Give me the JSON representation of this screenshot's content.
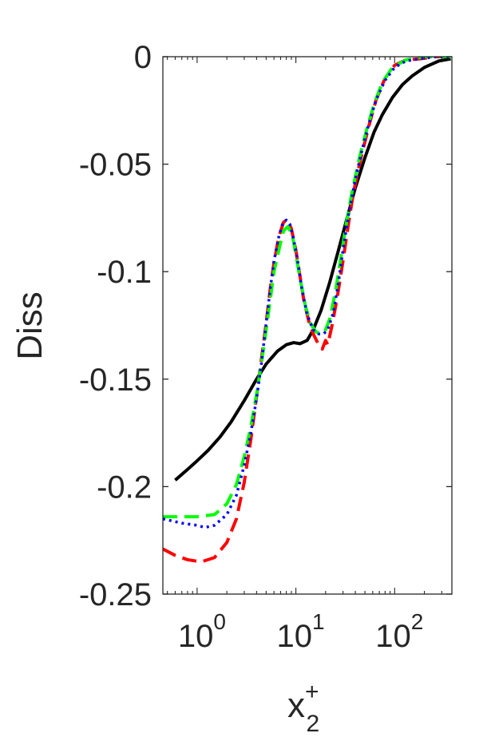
{
  "chart_data": {
    "type": "line",
    "title": "",
    "xlabel": "x",
    "xlabel_superscript": "+",
    "xlabel_subscript": "2",
    "ylabel": "Diss",
    "xscale": "log",
    "xlim": [
      0.45,
      380
    ],
    "ylim": [
      -0.25,
      0
    ],
    "grid": false,
    "x_ticks": [
      {
        "value": 1,
        "base": "10",
        "exp": "0"
      },
      {
        "value": 10,
        "base": "10",
        "exp": "1"
      },
      {
        "value": 100,
        "base": "10",
        "exp": "2"
      }
    ],
    "y_ticks": [
      {
        "value": 0,
        "label": "0"
      },
      {
        "value": -0.05,
        "label": "-0.05"
      },
      {
        "value": -0.1,
        "label": "-0.1"
      },
      {
        "value": -0.15,
        "label": "-0.15"
      },
      {
        "value": -0.2,
        "label": "-0.2"
      },
      {
        "value": -0.25,
        "label": "-0.25"
      }
    ],
    "series": [
      {
        "color": "#000000",
        "dash": "solid",
        "points": [
          [
            0.6,
            -0.197
          ],
          [
            0.8,
            -0.192
          ],
          [
            1.0,
            -0.188
          ],
          [
            1.3,
            -0.183
          ],
          [
            1.7,
            -0.177
          ],
          [
            2.2,
            -0.17
          ],
          [
            3.0,
            -0.16
          ],
          [
            4.0,
            -0.15
          ],
          [
            5.0,
            -0.143
          ],
          [
            6.5,
            -0.137
          ],
          [
            8.0,
            -0.134
          ],
          [
            9.5,
            -0.133
          ],
          [
            11,
            -0.1335
          ],
          [
            13,
            -0.132
          ],
          [
            15,
            -0.127
          ],
          [
            18,
            -0.118
          ],
          [
            22,
            -0.105
          ],
          [
            27,
            -0.09
          ],
          [
            33,
            -0.075
          ],
          [
            40,
            -0.061
          ],
          [
            50,
            -0.047
          ],
          [
            62,
            -0.035
          ],
          [
            75,
            -0.027
          ],
          [
            95,
            -0.019
          ],
          [
            120,
            -0.013
          ],
          [
            150,
            -0.009
          ],
          [
            200,
            -0.005
          ],
          [
            280,
            -0.002
          ],
          [
            370,
            -0.001
          ]
        ]
      },
      {
        "color": "#ff0000",
        "dash": "dashed",
        "points": [
          [
            0.45,
            -0.229
          ],
          [
            0.6,
            -0.232
          ],
          [
            0.8,
            -0.234
          ],
          [
            1.1,
            -0.235
          ],
          [
            1.5,
            -0.233
          ],
          [
            2.0,
            -0.226
          ],
          [
            2.5,
            -0.215
          ],
          [
            3.0,
            -0.198
          ],
          [
            3.5,
            -0.178
          ],
          [
            4.0,
            -0.158
          ],
          [
            4.5,
            -0.14
          ],
          [
            5.0,
            -0.124
          ],
          [
            5.5,
            -0.108
          ],
          [
            6.0,
            -0.096
          ],
          [
            6.7,
            -0.084
          ],
          [
            7.5,
            -0.077
          ],
          [
            8.2,
            -0.076
          ],
          [
            9.0,
            -0.08
          ],
          [
            10,
            -0.09
          ],
          [
            11,
            -0.102
          ],
          [
            12,
            -0.113
          ],
          [
            13.5,
            -0.123
          ],
          [
            15,
            -0.129
          ],
          [
            17,
            -0.134
          ],
          [
            18.5,
            -0.136
          ],
          [
            20,
            -0.132
          ],
          [
            21,
            -0.134
          ],
          [
            23,
            -0.126
          ],
          [
            26,
            -0.113
          ],
          [
            30,
            -0.095
          ],
          [
            34,
            -0.078
          ],
          [
            38,
            -0.064
          ],
          [
            45,
            -0.048
          ],
          [
            55,
            -0.032
          ],
          [
            65,
            -0.02
          ],
          [
            80,
            -0.01
          ],
          [
            100,
            -0.004
          ],
          [
            130,
            -0.0015
          ],
          [
            180,
            -0.001
          ],
          [
            260,
            0.0
          ],
          [
            370,
            0.0
          ]
        ]
      },
      {
        "color": "#00ff00",
        "dash": "dashed",
        "points": [
          [
            0.45,
            -0.214
          ],
          [
            0.7,
            -0.214
          ],
          [
            1.0,
            -0.214
          ],
          [
            1.5,
            -0.213
          ],
          [
            2.0,
            -0.208
          ],
          [
            2.5,
            -0.199
          ],
          [
            3.0,
            -0.186
          ],
          [
            3.5,
            -0.172
          ],
          [
            4.0,
            -0.157
          ],
          [
            4.5,
            -0.142
          ],
          [
            5.0,
            -0.127
          ],
          [
            5.5,
            -0.113
          ],
          [
            6.0,
            -0.1
          ],
          [
            6.8,
            -0.089
          ],
          [
            7.5,
            -0.081
          ],
          [
            8.3,
            -0.079
          ],
          [
            9.2,
            -0.083
          ],
          [
            10,
            -0.092
          ],
          [
            11,
            -0.103
          ],
          [
            12.5,
            -0.116
          ],
          [
            14,
            -0.124
          ],
          [
            16,
            -0.128
          ],
          [
            18,
            -0.129
          ],
          [
            20,
            -0.127
          ],
          [
            22,
            -0.122
          ],
          [
            25,
            -0.11
          ],
          [
            28,
            -0.096
          ],
          [
            32,
            -0.079
          ],
          [
            37,
            -0.063
          ],
          [
            44,
            -0.047
          ],
          [
            52,
            -0.034
          ],
          [
            62,
            -0.022
          ],
          [
            75,
            -0.012
          ],
          [
            95,
            -0.005
          ],
          [
            130,
            -0.0015
          ],
          [
            200,
            0.0
          ],
          [
            370,
            0.0
          ]
        ]
      },
      {
        "color": "#0000ff",
        "dash": "dotted",
        "points": [
          [
            0.45,
            -0.215
          ],
          [
            0.7,
            -0.217
          ],
          [
            1.0,
            -0.218
          ],
          [
            1.2,
            -0.219
          ],
          [
            1.5,
            -0.218
          ],
          [
            2.0,
            -0.213
          ],
          [
            2.5,
            -0.204
          ],
          [
            3.0,
            -0.19
          ],
          [
            3.5,
            -0.175
          ],
          [
            4.0,
            -0.159
          ],
          [
            4.5,
            -0.142
          ],
          [
            5.0,
            -0.124
          ],
          [
            5.5,
            -0.108
          ],
          [
            6.0,
            -0.095
          ],
          [
            6.7,
            -0.084
          ],
          [
            7.4,
            -0.077
          ],
          [
            8.0,
            -0.076
          ],
          [
            8.7,
            -0.078
          ],
          [
            9.5,
            -0.085
          ],
          [
            10.5,
            -0.096
          ],
          [
            11.5,
            -0.108
          ],
          [
            13,
            -0.12
          ],
          [
            15,
            -0.127
          ],
          [
            17,
            -0.129
          ],
          [
            19,
            -0.129
          ],
          [
            21,
            -0.127
          ],
          [
            24,
            -0.119
          ],
          [
            27,
            -0.105
          ],
          [
            30,
            -0.09
          ],
          [
            34,
            -0.074
          ],
          [
            40,
            -0.057
          ],
          [
            47,
            -0.043
          ],
          [
            55,
            -0.031
          ],
          [
            65,
            -0.02
          ],
          [
            80,
            -0.011
          ],
          [
            100,
            -0.005
          ],
          [
            130,
            -0.002
          ],
          [
            180,
            -0.001
          ],
          [
            260,
            0.0
          ],
          [
            370,
            0.0
          ]
        ]
      }
    ]
  }
}
